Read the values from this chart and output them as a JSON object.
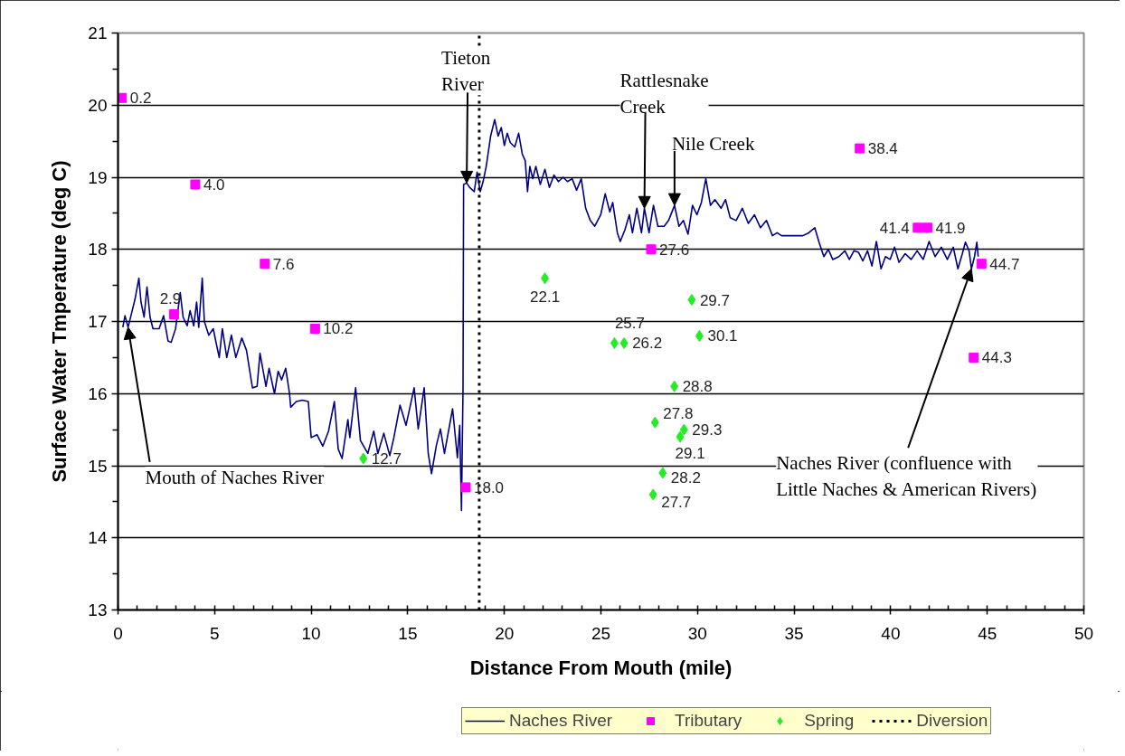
{
  "chart_data": {
    "type": "line",
    "xlabel": "Distance From Mouth (mile)",
    "ylabel": "Surface Water Tmperature (deg C)",
    "xlim": [
      0,
      50
    ],
    "xticks": [
      0,
      {
        "value": 1,
        "label": null
      },
      {
        "value": 2,
        "label": null
      },
      {
        "value": 3,
        "label": null
      },
      {
        "value": 4,
        "label": null
      },
      5,
      {
        "value": 6,
        "label": null
      },
      {
        "value": 7,
        "label": null
      },
      {
        "value": 8,
        "label": null
      },
      {
        "value": 9,
        "label": null
      },
      10,
      {
        "value": 11,
        "label": null
      },
      {
        "value": 12,
        "label": null
      },
      {
        "value": 13,
        "label": null
      },
      {
        "value": 14,
        "label": null
      },
      15,
      {
        "value": 16,
        "label": null
      },
      {
        "value": 17,
        "label": null
      },
      {
        "value": 18,
        "label": null
      },
      {
        "value": 19,
        "label": null
      },
      20,
      {
        "value": 21,
        "label": null
      },
      {
        "value": 22,
        "label": null
      },
      {
        "value": 23,
        "label": null
      },
      {
        "value": 24,
        "label": null
      },
      25,
      {
        "value": 26,
        "label": null
      },
      {
        "value": 27,
        "label": null
      },
      {
        "value": 28,
        "label": null
      },
      {
        "value": 29,
        "label": null
      },
      30,
      {
        "value": 31,
        "label": null
      },
      {
        "value": 32,
        "label": null
      },
      {
        "value": 33,
        "label": null
      },
      {
        "value": 34,
        "label": null
      },
      35,
      {
        "value": 36,
        "label": null
      },
      {
        "value": 37,
        "label": null
      },
      {
        "value": 38,
        "label": null
      },
      {
        "value": 39,
        "label": null
      },
      40,
      {
        "value": 41,
        "label": null
      },
      {
        "value": 42,
        "label": null
      },
      {
        "value": 43,
        "label": null
      },
      {
        "value": 44,
        "label": null
      },
      45,
      {
        "value": 46,
        "label": null
      },
      {
        "value": 47,
        "label": null
      },
      {
        "value": 48,
        "label": null
      },
      {
        "value": 49,
        "label": null
      },
      50
    ],
    "ylim": [
      13,
      21
    ],
    "yticks": [
      13,
      {
        "value": 13.5,
        "label": null
      },
      14,
      {
        "value": 14.5,
        "label": null
      },
      15,
      {
        "value": 15.5,
        "label": null
      },
      16,
      {
        "value": 16.5,
        "label": null
      },
      17,
      {
        "value": 17.5,
        "label": null
      },
      18,
      {
        "value": 18.5,
        "label": null
      },
      19,
      {
        "value": 19.5,
        "label": null
      },
      20,
      {
        "value": 20.5,
        "label": null
      },
      21
    ],
    "grid": "y",
    "legend": "bottom",
    "annotations": [
      {
        "text": "Tieton River",
        "x": 18.05,
        "y": 18.92
      },
      {
        "text": "Rattlesnake Creek",
        "x": 27.25,
        "y": 18.57
      },
      {
        "text": "Nile Creek",
        "x": 28.81,
        "y": 18.61
      },
      {
        "text": "Mouth of Naches River",
        "x": 0.52,
        "y": 16.92
      },
      {
        "text": "Naches River (confluence with Little Naches & American Rivers)",
        "x": 44.18,
        "y": 17.73
      },
      {
        "text": "0.2",
        "x": 0.2,
        "y": 20.1
      },
      {
        "text": "2.9",
        "x": 2.9,
        "y": 17.1
      },
      {
        "text": "4.0",
        "x": 4.0,
        "y": 18.9
      },
      {
        "text": "7.6",
        "x": 7.6,
        "y": 17.8
      },
      {
        "text": "10.2",
        "x": 10.2,
        "y": 16.9
      },
      {
        "text": "18.0",
        "x": 18.0,
        "y": 14.7
      },
      {
        "text": "27.6",
        "x": 27.6,
        "y": 18.0
      },
      {
        "text": "38.4",
        "x": 38.4,
        "y": 19.4
      },
      {
        "text": "41.4",
        "x": 41.4,
        "y": 18.3
      },
      {
        "text": "41.9",
        "x": 41.9,
        "y": 18.3
      },
      {
        "text": "44.3",
        "x": 44.3,
        "y": 16.5
      },
      {
        "text": "44.7",
        "x": 44.7,
        "y": 17.8
      },
      {
        "text": "12.7",
        "x": 12.7,
        "y": 15.1
      },
      {
        "text": "22.1",
        "x": 22.1,
        "y": 17.6
      },
      {
        "text": "25.7",
        "x": 25.7,
        "y": 16.7
      },
      {
        "text": "26.2",
        "x": 26.2,
        "y": 16.7
      },
      {
        "text": "27.7",
        "x": 27.7,
        "y": 14.6
      },
      {
        "text": "27.8",
        "x": 27.8,
        "y": 15.6
      },
      {
        "text": "28.2",
        "x": 28.2,
        "y": 14.9
      },
      {
        "text": "28.8",
        "x": 28.8,
        "y": 16.1
      },
      {
        "text": "29.1",
        "x": 29.1,
        "y": 15.4
      },
      {
        "text": "29.3",
        "x": 29.3,
        "y": 15.5
      },
      {
        "text": "29.7",
        "x": 29.7,
        "y": 17.3
      },
      {
        "text": "30.1",
        "x": 30.1,
        "y": 16.8
      }
    ],
    "series": [
      {
        "name": "Naches River",
        "color": "#000080",
        "x": [
          0.25,
          0.36,
          0.52,
          0.67,
          0.88,
          1.08,
          1.19,
          1.35,
          1.5,
          1.66,
          1.81,
          2.13,
          2.36,
          2.59,
          2.75,
          2.98,
          3.22,
          3.37,
          3.58,
          3.73,
          3.92,
          4.07,
          4.18,
          4.36,
          4.47,
          4.7,
          4.93,
          5.09,
          5.24,
          5.4,
          5.63,
          5.87,
          6.1,
          6.41,
          6.65,
          6.96,
          7.2,
          7.35,
          7.66,
          7.82,
          8.1,
          8.29,
          8.47,
          8.68,
          8.88,
          8.94,
          9.23,
          9.54,
          9.85,
          10.0,
          10.3,
          10.6,
          10.9,
          11.2,
          11.4,
          11.6,
          11.9,
          12.0,
          12.3,
          12.55,
          12.93,
          13.24,
          13.45,
          13.76,
          14.07,
          14.28,
          14.6,
          14.91,
          15.33,
          15.54,
          15.85,
          16.06,
          16.23,
          16.48,
          16.69,
          16.9,
          17.32,
          17.57,
          17.69,
          17.78,
          17.86,
          17.89,
          18.05,
          18.2,
          18.44,
          18.59,
          18.75,
          18.9,
          19.06,
          19.29,
          19.5,
          19.68,
          19.84,
          20.0,
          20.15,
          20.31,
          20.54,
          20.74,
          20.93,
          21.08,
          21.2,
          21.32,
          21.47,
          21.63,
          21.86,
          22.1,
          22.33,
          22.57,
          22.8,
          23.04,
          23.27,
          23.51,
          23.74,
          23.98,
          24.21,
          24.45,
          24.68,
          24.99,
          25.22,
          25.46,
          25.61,
          25.85,
          26.0,
          26.24,
          26.47,
          26.63,
          26.86,
          27.1,
          27.25,
          27.49,
          27.72,
          27.95,
          28.27,
          28.5,
          28.81,
          29.04,
          29.27,
          29.51,
          29.74,
          29.97,
          30.2,
          30.43,
          30.67,
          30.9,
          31.22,
          31.45,
          31.69,
          32.0,
          32.32,
          32.63,
          32.95,
          33.26,
          33.57,
          33.88,
          34.12,
          34.35,
          35.45,
          35.76,
          36.07,
          36.3,
          36.54,
          36.77,
          37.0,
          37.32,
          37.63,
          37.86,
          38.1,
          38.33,
          38.56,
          38.8,
          39.03,
          39.26,
          39.5,
          39.73,
          39.97,
          40.2,
          40.43,
          40.75,
          41.06,
          41.37,
          41.68,
          41.99,
          42.3,
          42.62,
          42.93,
          43.24,
          43.48,
          43.71,
          43.87,
          44.06,
          44.18,
          44.34,
          44.46,
          44.53
        ],
        "values": [
          16.92,
          17.08,
          16.92,
          17.08,
          17.31,
          17.6,
          17.27,
          17.06,
          17.48,
          17.06,
          16.9,
          16.9,
          17.08,
          16.73,
          16.71,
          16.9,
          17.4,
          17.06,
          16.94,
          17.15,
          16.94,
          17.27,
          16.92,
          17.6,
          17.0,
          16.81,
          16.9,
          16.69,
          16.5,
          16.9,
          16.5,
          16.81,
          16.5,
          16.77,
          16.6,
          16.08,
          16.1,
          16.56,
          16.1,
          16.35,
          16.0,
          16.31,
          16.19,
          16.35,
          16.0,
          15.81,
          15.89,
          15.91,
          15.89,
          15.39,
          15.43,
          15.27,
          15.48,
          15.89,
          15.23,
          15.1,
          15.64,
          15.39,
          16.08,
          15.35,
          15.17,
          15.48,
          15.17,
          15.45,
          15.14,
          15.39,
          15.84,
          15.56,
          16.08,
          15.51,
          16.08,
          15.17,
          14.89,
          15.28,
          15.51,
          15.17,
          15.79,
          15.11,
          15.56,
          14.38,
          16.07,
          18.9,
          18.92,
          18.86,
          18.8,
          19.07,
          18.8,
          18.94,
          19.15,
          19.57,
          19.8,
          19.57,
          19.69,
          19.44,
          19.61,
          19.48,
          19.42,
          19.61,
          19.32,
          19.23,
          18.8,
          19.15,
          18.98,
          19.15,
          18.9,
          19.11,
          18.86,
          19.03,
          18.94,
          19.0,
          18.94,
          18.98,
          18.82,
          18.98,
          18.57,
          18.4,
          18.32,
          18.48,
          18.77,
          18.52,
          18.65,
          18.23,
          18.11,
          18.27,
          18.48,
          18.23,
          18.57,
          18.23,
          18.57,
          18.23,
          18.61,
          18.32,
          18.32,
          18.4,
          18.61,
          18.32,
          18.4,
          18.21,
          18.61,
          18.48,
          18.65,
          18.98,
          18.61,
          18.69,
          18.57,
          18.69,
          18.44,
          18.4,
          18.57,
          18.36,
          18.48,
          18.3,
          18.4,
          18.19,
          18.23,
          18.19,
          18.19,
          18.23,
          18.3,
          18.09,
          17.9,
          18.0,
          17.86,
          17.9,
          17.98,
          17.86,
          17.98,
          17.96,
          17.84,
          17.98,
          17.77,
          18.11,
          17.73,
          17.9,
          17.86,
          18.03,
          17.82,
          17.94,
          17.86,
          17.98,
          17.86,
          18.11,
          17.9,
          18.03,
          17.86,
          18.03,
          17.73,
          17.94,
          18.1,
          17.98,
          17.73,
          17.9,
          18.1,
          17.9
        ]
      },
      {
        "name": "Tributary",
        "type": "scatter",
        "marker": "square",
        "color": "#ff00ff",
        "x": [
          0.2,
          2.9,
          4.0,
          7.6,
          10.2,
          18.0,
          27.6,
          38.4,
          41.4,
          41.9,
          44.3,
          44.7
        ],
        "values": [
          20.1,
          17.1,
          18.9,
          17.8,
          16.9,
          14.7,
          18.0,
          19.4,
          18.3,
          18.3,
          16.5,
          17.8
        ]
      },
      {
        "name": "Spring",
        "type": "scatter",
        "marker": "diamond",
        "color": "#22ee22",
        "x": [
          12.7,
          22.1,
          25.7,
          26.2,
          27.7,
          27.8,
          28.2,
          28.8,
          29.1,
          29.3,
          29.7,
          30.1
        ],
        "values": [
          15.1,
          17.6,
          16.7,
          16.7,
          14.6,
          15.6,
          14.9,
          16.1,
          15.4,
          15.5,
          17.3,
          16.8
        ]
      },
      {
        "name": "Diversion",
        "line_style": "dotted",
        "color": "#000000",
        "x": [
          18.7,
          18.7
        ],
        "values": [
          13,
          21
        ]
      }
    ]
  }
}
